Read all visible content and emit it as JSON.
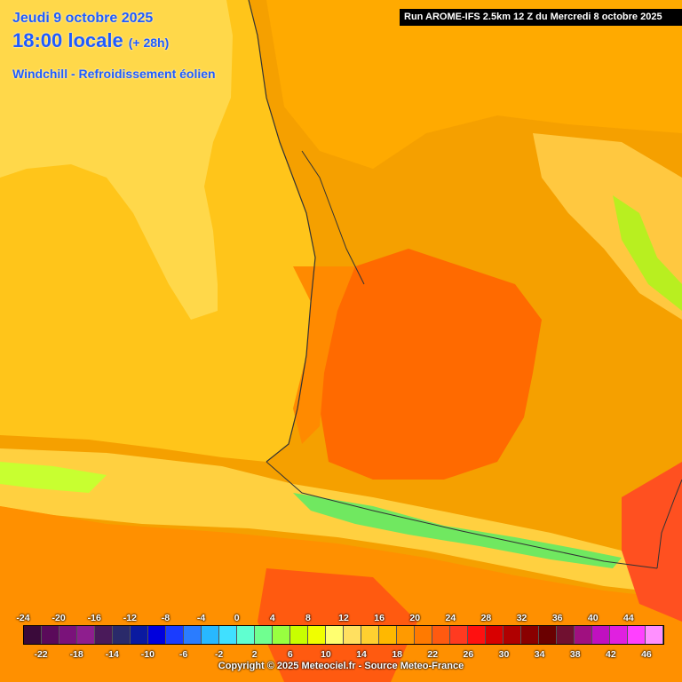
{
  "header": {
    "date": "Jeudi 9 octobre 2025",
    "time": "18:00 locale",
    "lead": "(+ 28h)",
    "variable": "Windchill - Refroidissement éolien",
    "run": "Run AROME-IFS 2.5km 12 Z du Mercredi 8 octobre 2025"
  },
  "legend": {
    "top_labels": [
      "-24",
      "-20",
      "-16",
      "-12",
      "-8",
      "-4",
      "0",
      "4",
      "8",
      "12",
      "16",
      "20",
      "24",
      "28",
      "32",
      "36",
      "40",
      "44"
    ],
    "bottom_labels": [
      "-22",
      "-18",
      "-14",
      "-10",
      "-6",
      "-2",
      "2",
      "6",
      "10",
      "14",
      "18",
      "22",
      "26",
      "30",
      "34",
      "38",
      "42",
      "46"
    ],
    "colors": [
      "#3a0a3a",
      "#5a0a5a",
      "#7a127a",
      "#8e1e8e",
      "#4a1a5a",
      "#2a2a6a",
      "#0a1aa0",
      "#0000dd",
      "#1a3cff",
      "#2a7cff",
      "#28b8ff",
      "#40e0ff",
      "#60ffd0",
      "#70ff90",
      "#98ff40",
      "#c8ff00",
      "#f0ff00",
      "#ffff70",
      "#ffe060",
      "#ffd030",
      "#ffb800",
      "#ff9a00",
      "#ff7a00",
      "#ff5a10",
      "#ff3a20",
      "#ff1010",
      "#d80000",
      "#b00000",
      "#8a0000",
      "#6a0000",
      "#701030",
      "#a01080",
      "#c010c0",
      "#e020e0",
      "#ff40ff",
      "#ff90ff"
    ]
  },
  "copyright": "Copyright © 2025 Meteociel.fr - Source Meteo-France"
}
